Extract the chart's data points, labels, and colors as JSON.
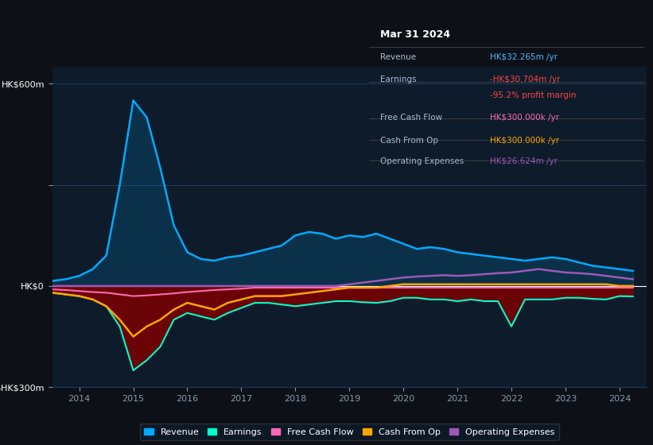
{
  "bg_color": "#0d1117",
  "plot_bg_color": "#0d1b2a",
  "grid_color": "#1e3a5f",
  "zero_line_color": "#ffffff",
  "ylim": [
    -300,
    650
  ],
  "xlim": [
    2013.5,
    2024.5
  ],
  "yticks": [
    -300,
    0,
    300,
    600
  ],
  "ytick_labels": [
    "-HK$300m",
    "HK$0",
    "",
    "HK$600m"
  ],
  "xticks": [
    2014,
    2015,
    2016,
    2017,
    2018,
    2019,
    2020,
    2021,
    2022,
    2023,
    2024
  ],
  "info_box": {
    "title": "Mar 31 2024",
    "rows": [
      {
        "label": "Revenue",
        "value": "HK$32.265m /yr",
        "value_color": "#4db8ff"
      },
      {
        "label": "Earnings",
        "value": "-HK$30.704m /yr",
        "value_color": "#ff4444"
      },
      {
        "label": "",
        "value": "-95.2% profit margin",
        "value_color": "#ff4444"
      },
      {
        "label": "Free Cash Flow",
        "value": "HK$300.000k /yr",
        "value_color": "#ff69b4"
      },
      {
        "label": "Cash From Op",
        "value": "HK$300.000k /yr",
        "value_color": "#ffa500"
      },
      {
        "label": "Operating Expenses",
        "value": "HK$26.624m /yr",
        "value_color": "#9b59b6"
      }
    ]
  },
  "series": {
    "revenue": {
      "color": "#00aaff",
      "fill_color": "#00aaff",
      "label": "Revenue",
      "x": [
        2013.5,
        2013.75,
        2014.0,
        2014.25,
        2014.5,
        2014.75,
        2015.0,
        2015.25,
        2015.5,
        2015.75,
        2016.0,
        2016.25,
        2016.5,
        2016.75,
        2017.0,
        2017.25,
        2017.5,
        2017.75,
        2018.0,
        2018.25,
        2018.5,
        2018.75,
        2019.0,
        2019.25,
        2019.5,
        2019.75,
        2020.0,
        2020.25,
        2020.5,
        2020.75,
        2021.0,
        2021.25,
        2021.5,
        2021.75,
        2022.0,
        2022.25,
        2022.5,
        2022.75,
        2023.0,
        2023.25,
        2023.5,
        2023.75,
        2024.0,
        2024.25
      ],
      "y": [
        15,
        20,
        30,
        50,
        90,
        300,
        550,
        500,
        350,
        180,
        100,
        80,
        75,
        85,
        90,
        100,
        110,
        120,
        150,
        160,
        155,
        140,
        150,
        145,
        155,
        140,
        125,
        110,
        115,
        110,
        100,
        95,
        90,
        85,
        80,
        75,
        80,
        85,
        80,
        70,
        60,
        55,
        50,
        45
      ]
    },
    "earnings": {
      "color": "#00ffcc",
      "fill_color": "#7b0000",
      "label": "Earnings",
      "x": [
        2013.5,
        2013.75,
        2014.0,
        2014.25,
        2014.5,
        2014.75,
        2015.0,
        2015.25,
        2015.5,
        2015.75,
        2016.0,
        2016.25,
        2016.5,
        2016.75,
        2017.0,
        2017.25,
        2017.5,
        2017.75,
        2018.0,
        2018.25,
        2018.5,
        2018.75,
        2019.0,
        2019.25,
        2019.5,
        2019.75,
        2020.0,
        2020.25,
        2020.5,
        2020.75,
        2021.0,
        2021.25,
        2021.5,
        2021.75,
        2022.0,
        2022.25,
        2022.5,
        2022.75,
        2023.0,
        2023.25,
        2023.5,
        2023.75,
        2024.0,
        2024.25
      ],
      "y": [
        -20,
        -25,
        -30,
        -40,
        -60,
        -120,
        -250,
        -220,
        -180,
        -100,
        -80,
        -90,
        -100,
        -80,
        -65,
        -50,
        -50,
        -55,
        -60,
        -55,
        -50,
        -45,
        -45,
        -48,
        -50,
        -45,
        -35,
        -35,
        -40,
        -40,
        -45,
        -40,
        -45,
        -45,
        -120,
        -40,
        -40,
        -40,
        -35,
        -35,
        -38,
        -40,
        -30,
        -31
      ]
    },
    "free_cash_flow": {
      "color": "#ff69b4",
      "label": "Free Cash Flow",
      "x": [
        2013.5,
        2013.75,
        2014.0,
        2014.25,
        2014.5,
        2014.75,
        2015.0,
        2015.25,
        2015.5,
        2015.75,
        2016.0,
        2016.25,
        2016.5,
        2016.75,
        2017.0,
        2017.25,
        2017.5,
        2017.75,
        2018.0,
        2018.25,
        2018.5,
        2018.75,
        2019.0,
        2019.25,
        2019.5,
        2019.75,
        2020.0,
        2020.25,
        2020.5,
        2020.75,
        2021.0,
        2021.25,
        2021.5,
        2021.75,
        2022.0,
        2022.25,
        2022.5,
        2022.75,
        2023.0,
        2023.25,
        2023.5,
        2023.75,
        2024.0,
        2024.25
      ],
      "y": [
        -10,
        -12,
        -15,
        -18,
        -20,
        -25,
        -30,
        -28,
        -25,
        -22,
        -18,
        -15,
        -12,
        -10,
        -8,
        -5,
        -5,
        -5,
        -5,
        -5,
        -5,
        -5,
        -5,
        -5,
        -5,
        -5,
        -5,
        -5,
        -5,
        -5,
        -5,
        -5,
        -5,
        -5,
        -5,
        -5,
        -5,
        -5,
        -5,
        -5,
        -5,
        -5,
        -5,
        -5
      ]
    },
    "cash_from_op": {
      "color": "#ffa500",
      "label": "Cash From Op",
      "x": [
        2013.5,
        2013.75,
        2014.0,
        2014.25,
        2014.5,
        2014.75,
        2015.0,
        2015.25,
        2015.5,
        2015.75,
        2016.0,
        2016.25,
        2016.5,
        2016.75,
        2017.0,
        2017.25,
        2017.5,
        2017.75,
        2018.0,
        2018.25,
        2018.5,
        2018.75,
        2019.0,
        2019.25,
        2019.5,
        2019.75,
        2020.0,
        2020.25,
        2020.5,
        2020.75,
        2021.0,
        2021.25,
        2021.5,
        2021.75,
        2022.0,
        2022.25,
        2022.5,
        2022.75,
        2023.0,
        2023.25,
        2023.5,
        2023.75,
        2024.0,
        2024.25
      ],
      "y": [
        -20,
        -25,
        -30,
        -40,
        -60,
        -100,
        -150,
        -120,
        -100,
        -70,
        -50,
        -60,
        -70,
        -50,
        -40,
        -30,
        -30,
        -30,
        -25,
        -20,
        -15,
        -10,
        -5,
        -5,
        -5,
        0,
        5,
        5,
        5,
        5,
        5,
        5,
        5,
        5,
        5,
        5,
        5,
        5,
        5,
        5,
        5,
        5,
        0,
        0
      ]
    },
    "operating_expenses": {
      "color": "#9b59b6",
      "label": "Operating Expenses",
      "x": [
        2013.5,
        2013.75,
        2014.0,
        2014.25,
        2014.5,
        2014.75,
        2015.0,
        2015.25,
        2015.5,
        2015.75,
        2016.0,
        2016.25,
        2016.5,
        2016.75,
        2017.0,
        2017.25,
        2017.5,
        2017.75,
        2018.0,
        2018.25,
        2018.5,
        2018.75,
        2019.0,
        2019.25,
        2019.5,
        2019.75,
        2020.0,
        2020.25,
        2020.5,
        2020.75,
        2021.0,
        2021.25,
        2021.5,
        2021.75,
        2022.0,
        2022.25,
        2022.5,
        2022.75,
        2023.0,
        2023.25,
        2023.5,
        2023.75,
        2024.0,
        2024.25
      ],
      "y": [
        0,
        0,
        0,
        0,
        0,
        0,
        0,
        0,
        0,
        0,
        0,
        0,
        0,
        0,
        0,
        0,
        0,
        0,
        0,
        0,
        0,
        0,
        5,
        10,
        15,
        20,
        25,
        28,
        30,
        32,
        30,
        32,
        35,
        38,
        40,
        45,
        50,
        45,
        40,
        38,
        35,
        30,
        25,
        20
      ]
    }
  },
  "legend": [
    {
      "label": "Revenue",
      "color": "#00aaff"
    },
    {
      "label": "Earnings",
      "color": "#00ffcc"
    },
    {
      "label": "Free Cash Flow",
      "color": "#ff69b4"
    },
    {
      "label": "Cash From Op",
      "color": "#ffa500"
    },
    {
      "label": "Operating Expenses",
      "color": "#9b59b6"
    }
  ]
}
